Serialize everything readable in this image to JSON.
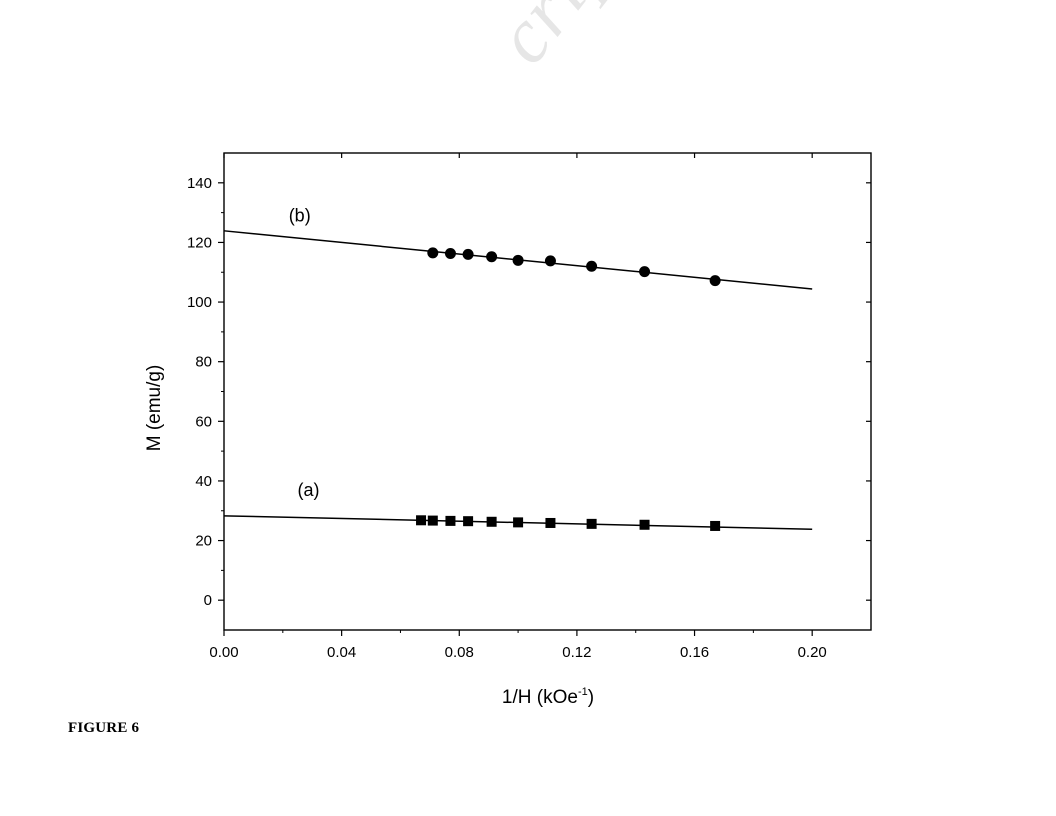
{
  "watermark": "cript",
  "caption": "FIGURE 6",
  "chart_data": {
    "type": "scatter",
    "title": "",
    "xlabel": "1/H (kOe",
    "xlabel_sup": "-1",
    "xlabel_end": ")",
    "ylabel": "M (emu/g)",
    "xlim": [
      0.0,
      0.22
    ],
    "ylim": [
      -10,
      150
    ],
    "x_ticks": [
      0.0,
      0.04,
      0.08,
      0.12,
      0.16,
      0.2
    ],
    "x_tick_labels": [
      "0.00",
      "0.04",
      "0.08",
      "0.12",
      "0.16",
      "0.20"
    ],
    "x_minor_ticks": [
      0.02,
      0.06,
      0.1,
      0.14,
      0.18
    ],
    "y_ticks": [
      0,
      20,
      40,
      60,
      80,
      100,
      120,
      140
    ],
    "y_tick_labels": [
      "0",
      "20",
      "40",
      "60",
      "80",
      "100",
      "120",
      "140"
    ],
    "y_minor_ticks": [
      10,
      30,
      50,
      70,
      90,
      110,
      130
    ],
    "grid": false,
    "series": [
      {
        "name": "(a)",
        "marker": "square",
        "label_at": [
          0.025,
          35
        ],
        "x": [
          0.067,
          0.071,
          0.077,
          0.083,
          0.091,
          0.1,
          0.111,
          0.125,
          0.143,
          0.167
        ],
        "y": [
          26.8,
          26.7,
          26.6,
          26.5,
          26.3,
          26.1,
          25.9,
          25.6,
          25.3,
          24.9
        ],
        "fit": {
          "x": [
            0.0,
            0.2
          ],
          "y": [
            28.3,
            23.8
          ]
        }
      },
      {
        "name": "(b)",
        "marker": "circle",
        "label_at": [
          0.022,
          127
        ],
        "x": [
          0.071,
          0.077,
          0.083,
          0.091,
          0.1,
          0.111,
          0.125,
          0.143,
          0.167
        ],
        "y": [
          116.5,
          116.3,
          116.0,
          115.2,
          114.0,
          113.8,
          112.0,
          110.2,
          107.2
        ],
        "fit": {
          "x": [
            0.0,
            0.2
          ],
          "y": [
            123.9,
            104.4
          ]
        }
      }
    ]
  }
}
